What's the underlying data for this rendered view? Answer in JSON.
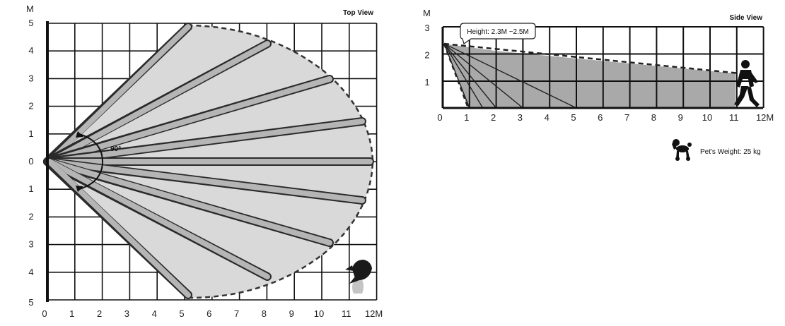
{
  "top_view": {
    "title": "Top View",
    "axis_unit": "M",
    "x_ticks": [
      "0",
      "1",
      "2",
      "3",
      "4",
      "5",
      "6",
      "7",
      "8",
      "9",
      "10",
      "11",
      "12M"
    ],
    "y_ticks": [
      "5",
      "4",
      "3",
      "2",
      "1",
      "0",
      "1",
      "2",
      "3",
      "4",
      "5"
    ],
    "angle_label": "90°",
    "beam_count": 9
  },
  "side_view": {
    "title": "Side View",
    "axis_unit": "M",
    "x_ticks": [
      "0",
      "1",
      "2",
      "3",
      "4",
      "5",
      "6",
      "7",
      "8",
      "9",
      "10",
      "11",
      "12M"
    ],
    "y_ticks": [
      "3",
      "2",
      "1"
    ],
    "height_callout": "Height: 2.3M ~2.5M",
    "pet_weight": "Pet's Weight: 25 kg"
  }
}
